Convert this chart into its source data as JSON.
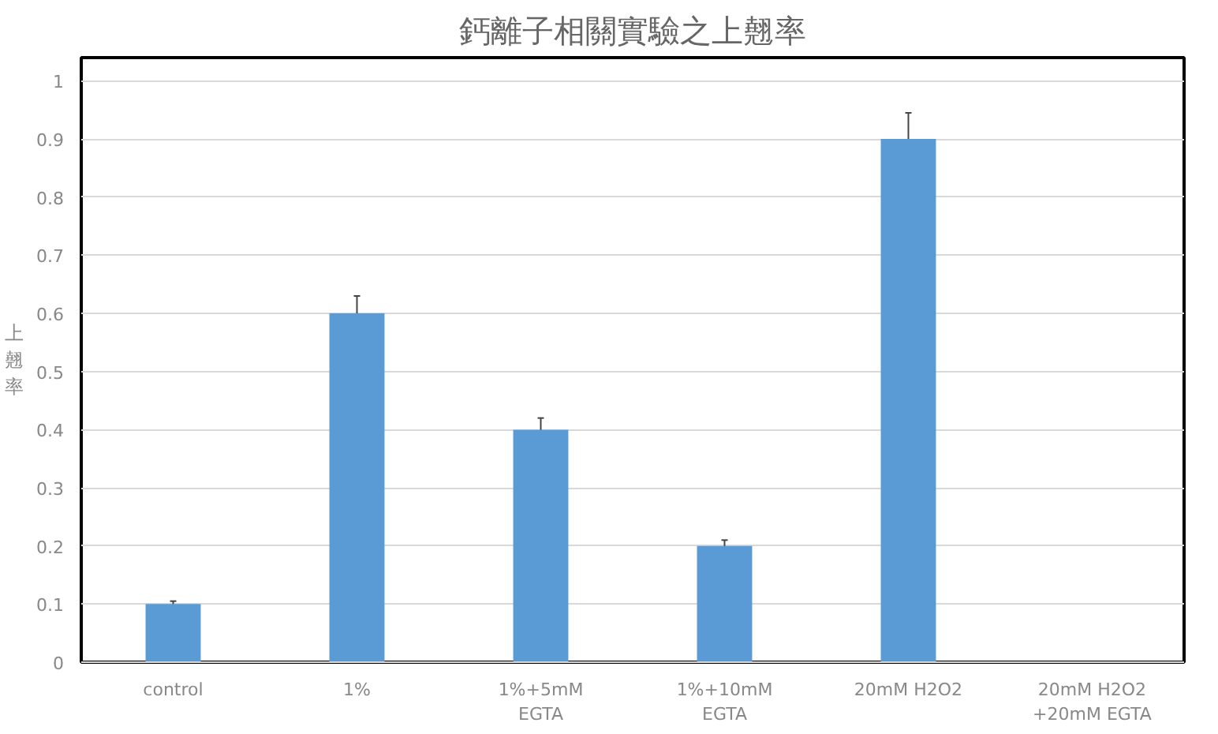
{
  "chart_data": {
    "type": "bar",
    "title": "鈣離子相關實驗之上翹率",
    "ylabel": "上翹率",
    "categories": [
      "control",
      "1%",
      "1%+5mM\nEGTA",
      "1%+10mM\nEGTA",
      "20mM H2O2",
      "20mM H2O2\n+20mM EGTA"
    ],
    "values": [
      0.1,
      0.6,
      0.4,
      0.2,
      0.9,
      null
    ],
    "errors": [
      0.005,
      0.03,
      0.02,
      0.01,
      0.045,
      null
    ],
    "color": "#5b9bd5",
    "ylim": [
      0,
      1
    ],
    "yticks": [
      0,
      0.1,
      0.2,
      0.3,
      0.4,
      0.5,
      0.6,
      0.7,
      0.8,
      0.9,
      1
    ],
    "grid": "y"
  }
}
